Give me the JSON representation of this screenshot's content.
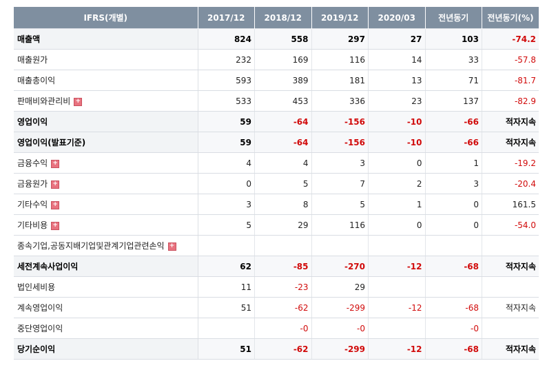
{
  "header": {
    "label": "IFRS(개별)",
    "columns": [
      "2017/12",
      "2018/12",
      "2019/12",
      "2020/03",
      "전년동기",
      "전년동기(%)"
    ]
  },
  "expand_icon": "plus-icon",
  "colors": {
    "header_bg": "#7f8fa0",
    "negative": "#d10a0a",
    "expand": "#e8727f"
  },
  "rows": [
    {
      "label": "매출액",
      "bold": true,
      "expand": false,
      "values": [
        "824",
        "558",
        "297",
        "27",
        "103",
        "-74.2"
      ]
    },
    {
      "label": "매출원가",
      "bold": false,
      "expand": false,
      "values": [
        "232",
        "169",
        "116",
        "14",
        "33",
        "-57.8"
      ]
    },
    {
      "label": "매출총이익",
      "bold": false,
      "expand": false,
      "values": [
        "593",
        "389",
        "181",
        "13",
        "71",
        "-81.7"
      ]
    },
    {
      "label": "판매비와관리비",
      "bold": false,
      "expand": true,
      "values": [
        "533",
        "453",
        "336",
        "23",
        "137",
        "-82.9"
      ]
    },
    {
      "label": "영업이익",
      "bold": true,
      "expand": false,
      "values": [
        "59",
        "-64",
        "-156",
        "-10",
        "-66",
        "적자지속"
      ]
    },
    {
      "label": "영업이익(발표기준)",
      "bold": true,
      "expand": false,
      "values": [
        "59",
        "-64",
        "-156",
        "-10",
        "-66",
        "적자지속"
      ]
    },
    {
      "label": "금융수익",
      "bold": false,
      "expand": true,
      "values": [
        "4",
        "4",
        "3",
        "0",
        "1",
        "-19.2"
      ]
    },
    {
      "label": "금융원가",
      "bold": false,
      "expand": true,
      "values": [
        "0",
        "5",
        "7",
        "2",
        "3",
        "-20.4"
      ]
    },
    {
      "label": "기타수익",
      "bold": false,
      "expand": true,
      "values": [
        "3",
        "8",
        "5",
        "1",
        "0",
        "161.5"
      ]
    },
    {
      "label": "기타비용",
      "bold": false,
      "expand": true,
      "values": [
        "5",
        "29",
        "116",
        "0",
        "0",
        "-54.0"
      ]
    },
    {
      "label": "종속기업,공동지배기업및관계기업관련손익",
      "bold": false,
      "expand": true,
      "values": [
        "",
        "",
        "",
        "",
        "",
        ""
      ]
    },
    {
      "label": "세전계속사업이익",
      "bold": true,
      "expand": false,
      "values": [
        "62",
        "-85",
        "-270",
        "-12",
        "-68",
        "적자지속"
      ]
    },
    {
      "label": "법인세비용",
      "bold": false,
      "expand": false,
      "values": [
        "11",
        "-23",
        "29",
        "",
        "",
        ""
      ]
    },
    {
      "label": "계속영업이익",
      "bold": false,
      "expand": false,
      "values": [
        "51",
        "-62",
        "-299",
        "-12",
        "-68",
        "적자지속"
      ]
    },
    {
      "label": "중단영업이익",
      "bold": false,
      "expand": false,
      "values": [
        "",
        "-0",
        "-0",
        "",
        "-0",
        ""
      ]
    },
    {
      "label": "당기순이익",
      "bold": true,
      "expand": false,
      "values": [
        "51",
        "-62",
        "-299",
        "-12",
        "-68",
        "적자지속"
      ]
    }
  ]
}
